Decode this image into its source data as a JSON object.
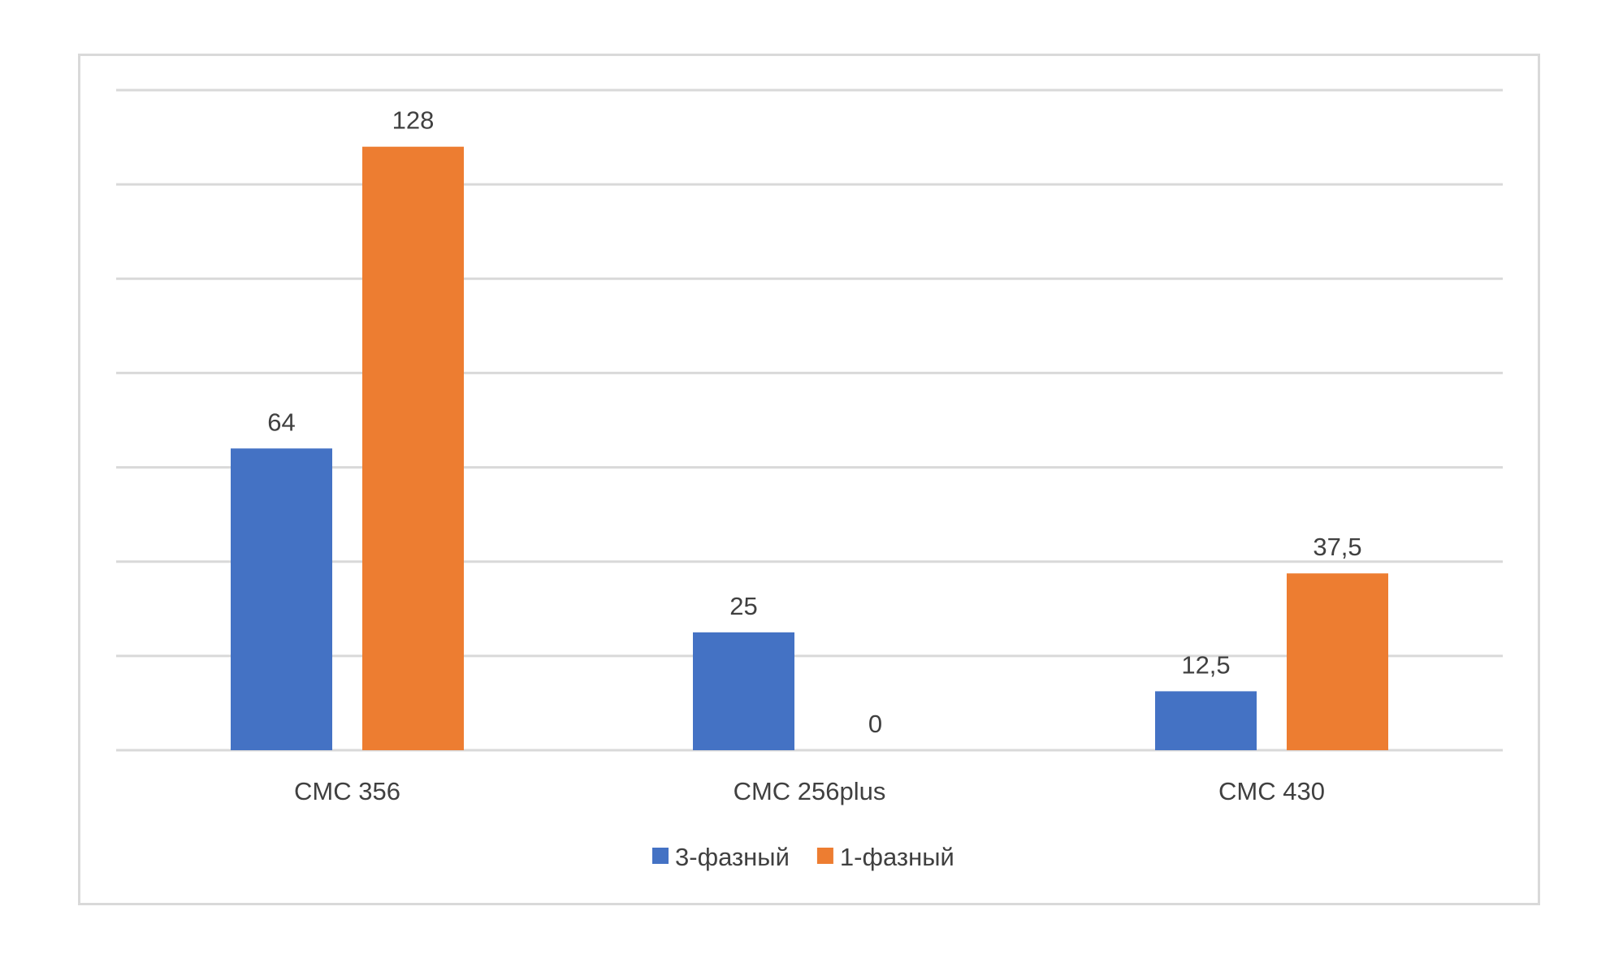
{
  "chart_data": {
    "type": "bar",
    "title": "",
    "xlabel": "",
    "ylabel": "",
    "categories": [
      "CMC 356",
      "CMC 256plus",
      "CMC 430"
    ],
    "series": [
      {
        "name": "3-фазный",
        "color": "#4472C4",
        "values": [
          64,
          25,
          12.5
        ],
        "labels": [
          "64",
          "25",
          "12,5"
        ]
      },
      {
        "name": "1-фазный",
        "color": "#ED7D31",
        "values": [
          128,
          0,
          37.5
        ],
        "labels": [
          "128",
          "0",
          "37,5"
        ]
      }
    ],
    "ylim": [
      0,
      140
    ],
    "ytick_step": 20,
    "grid": true,
    "y_axis_labels_shown": false,
    "legend_position": "bottom"
  }
}
